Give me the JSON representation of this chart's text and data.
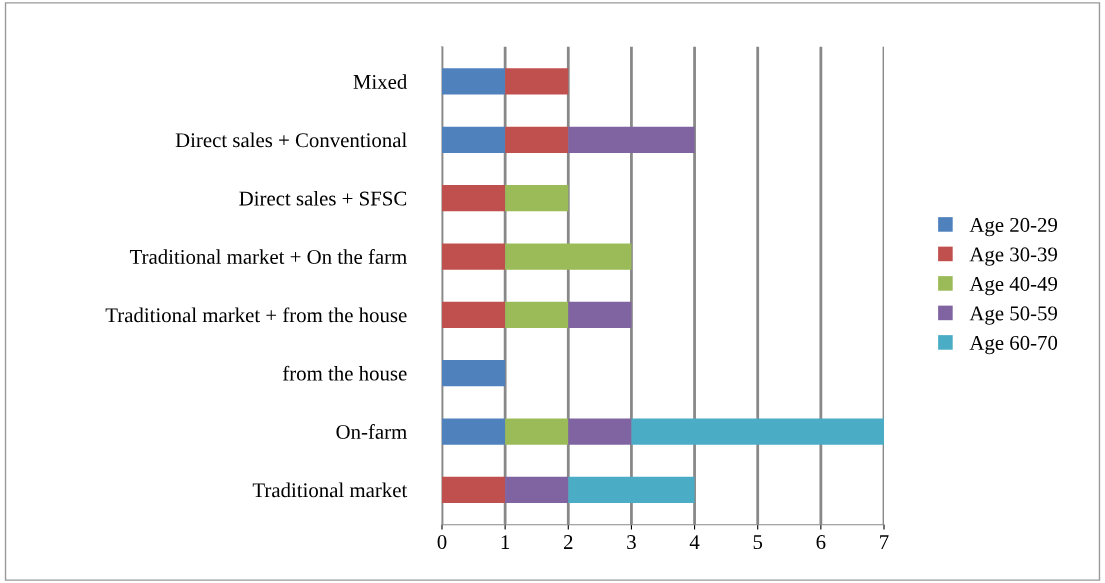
{
  "chart_data": {
    "type": "bar",
    "orientation": "horizontal",
    "stacked": true,
    "categories": [
      "Mixed",
      "Direct sales + Conventional",
      "Direct sales + SFSC",
      "Traditional market + On the farm",
      "Traditional market + from the house",
      "from the house",
      "On-farm",
      "Traditional market"
    ],
    "series": [
      {
        "name": "Age 20-29",
        "color": "#4f81bd",
        "values": [
          1,
          1,
          0,
          0,
          0,
          1,
          1,
          0
        ]
      },
      {
        "name": "Age 30-39",
        "color": "#c0504d",
        "values": [
          1,
          1,
          1,
          1,
          1,
          0,
          0,
          1
        ]
      },
      {
        "name": "Age 40-49",
        "color": "#9bbb59",
        "values": [
          0,
          0,
          1,
          2,
          1,
          0,
          1,
          0
        ]
      },
      {
        "name": "Age 50-59",
        "color": "#8064a2",
        "values": [
          0,
          2,
          0,
          0,
          1,
          0,
          1,
          1
        ]
      },
      {
        "name": "Age 60-70",
        "color": "#4bacc6",
        "values": [
          0,
          0,
          0,
          0,
          0,
          0,
          4,
          2
        ]
      }
    ],
    "xlim": [
      0,
      7
    ],
    "xticks": [
      0,
      1,
      2,
      3,
      4,
      5,
      6,
      7
    ],
    "grid": "x",
    "legend": "right"
  }
}
